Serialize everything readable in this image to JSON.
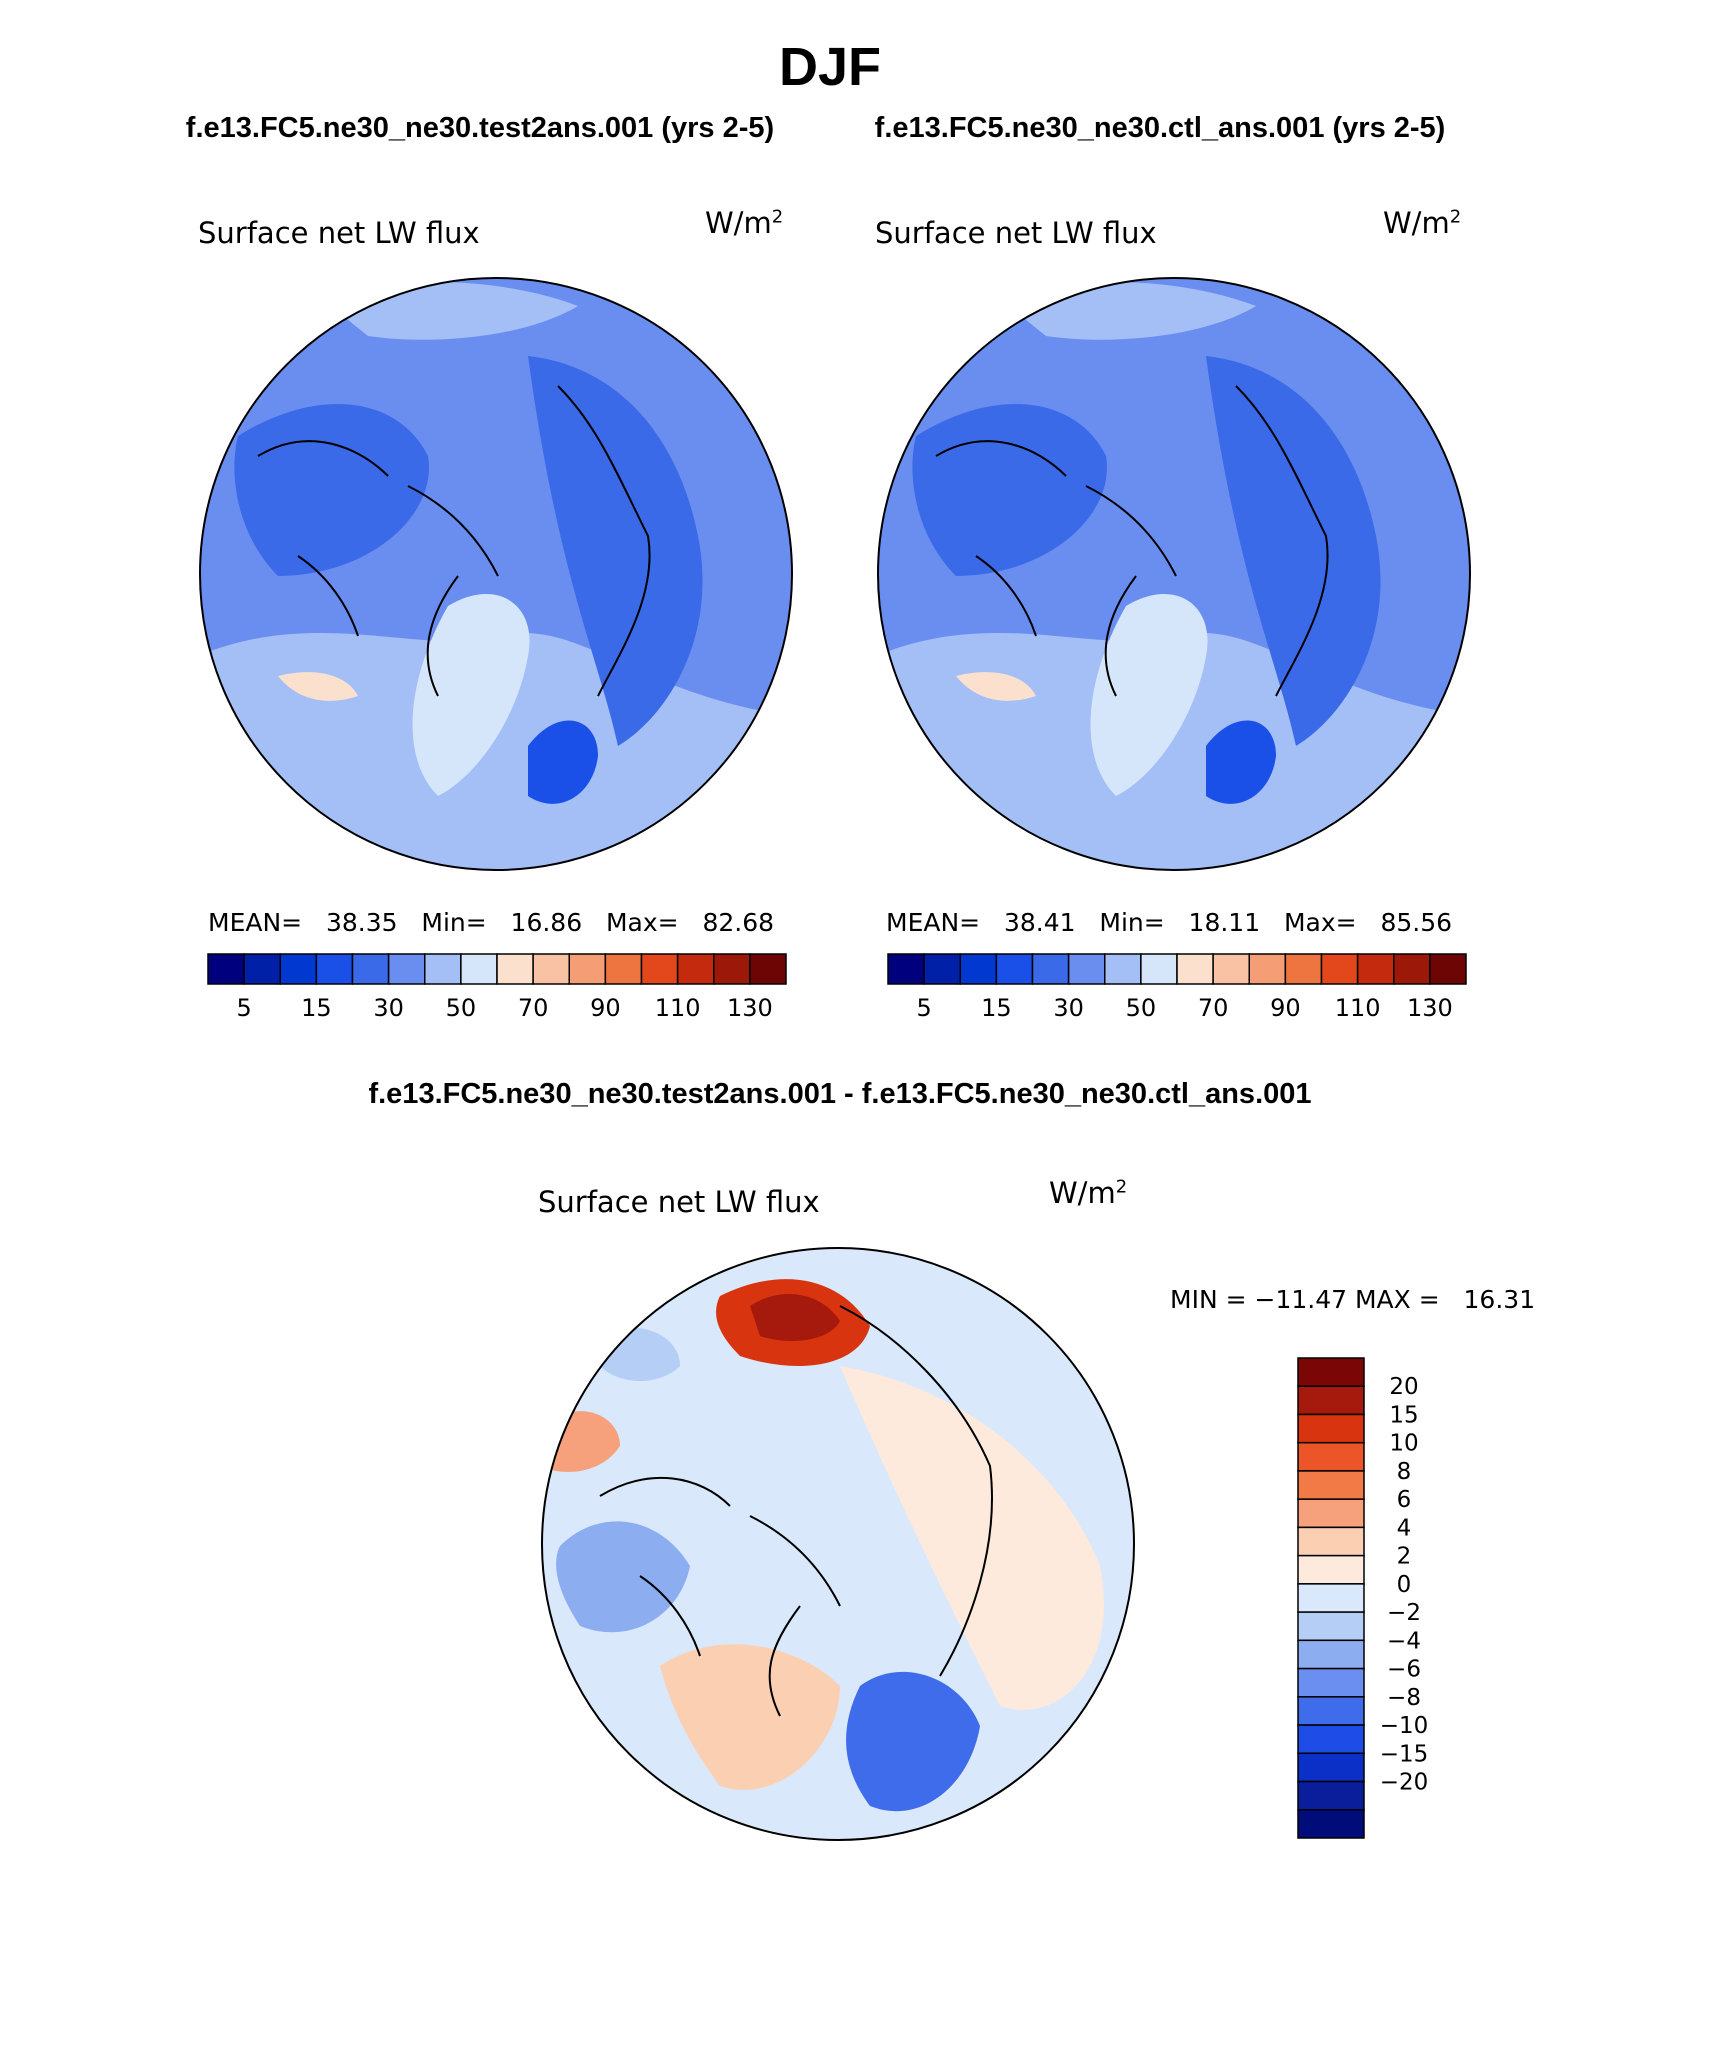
{
  "title": "DJF",
  "panels": [
    {
      "case_label": "f.e13.FC5.ne30_ne30.test2ans.001 (yrs 2-5)",
      "variable": "Surface net LW flux",
      "units_base": "W/m",
      "units_exp": "2",
      "mean_label": "MEAN=",
      "mean": "38.35",
      "min_label": "Min=",
      "min": "16.86",
      "max_label": "Max=",
      "max": "82.68"
    },
    {
      "case_label": "f.e13.FC5.ne30_ne30.ctl_ans.001 (yrs 2-5)",
      "variable": "Surface net LW flux",
      "units_base": "W/m",
      "units_exp": "2",
      "mean_label": "MEAN=",
      "mean": "38.41",
      "min_label": "Min=",
      "min": "18.11",
      "max_label": "Max=",
      "max": "85.56"
    }
  ],
  "main_colorbar": {
    "colors": [
      "#00007f",
      "#0020a8",
      "#0038d0",
      "#1a50e8",
      "#3a6ae8",
      "#6a8ef0",
      "#a4bef6",
      "#d6e6fa",
      "#fbe1cd",
      "#f9c2a4",
      "#f59d74",
      "#ee7440",
      "#e2481c",
      "#c42a0e",
      "#9c1808",
      "#6e0505"
    ],
    "tick_labels": [
      "5",
      "15",
      "30",
      "50",
      "70",
      "90",
      "110",
      "130"
    ]
  },
  "diff": {
    "title": "f.e13.FC5.ne30_ne30.test2ans.001 - f.e13.FC5.ne30_ne30.ctl_ans.001",
    "variable": "Surface net LW flux",
    "units_base": "W/m",
    "units_exp": "2",
    "min_label": "MIN =",
    "min": "−11.47",
    "max_label": "MAX =",
    "max": "16.31",
    "colorbar": {
      "colors": [
        "#7a0606",
        "#a51a0c",
        "#d7340f",
        "#eb5527",
        "#f27a46",
        "#f7a17c",
        "#fbd0b2",
        "#fdeadd",
        "#d9e8fb",
        "#b4cef6",
        "#8caef1",
        "#6a8ff0",
        "#3f6cea",
        "#1e4ce6",
        "#0b30c8",
        "#0a1e9c",
        "#000c7a"
      ],
      "tick_labels": [
        "20",
        "15",
        "10",
        "8",
        "6",
        "4",
        "2",
        "0",
        "−2",
        "−4",
        "−6",
        "−8",
        "−10",
        "−15",
        "−20"
      ]
    }
  }
}
